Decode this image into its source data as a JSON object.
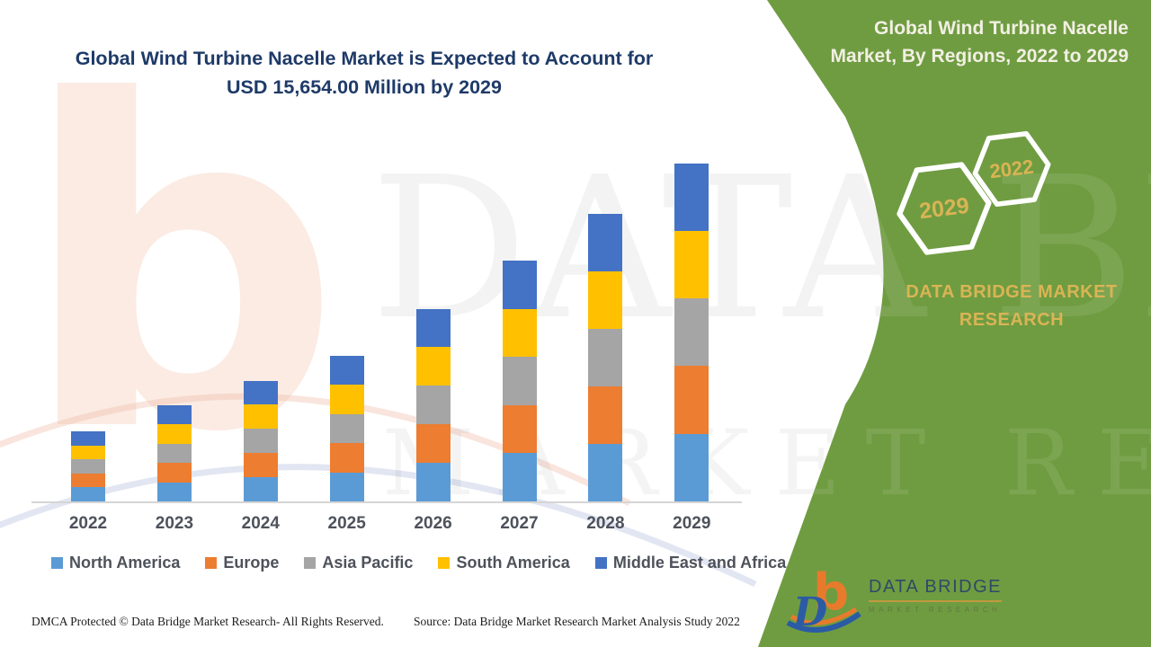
{
  "header": {
    "title_line1": "Global Wind Turbine Nacelle Market is Expected to Account for",
    "title_line2": "USD 15,654.00 Million by 2029"
  },
  "side_panel": {
    "heading": "Global Wind Turbine Nacelle Market, By Regions, 2022 to 2029",
    "hex_years": {
      "small": "2022",
      "large": "2029"
    },
    "brand_caption": "DATA BRIDGE MARKET RESEARCH",
    "colors": {
      "panel_green": "#6F9C41",
      "gold_text": "#D9B455",
      "heading_text": "#F2EFE3"
    }
  },
  "watermark": {
    "line1": "DATA BRIDGE",
    "line2": "MARKET RESEARCH"
  },
  "logo": {
    "name": "DATA BRIDGE",
    "subtitle": "MARKET RESEARCH"
  },
  "footer": {
    "left": "DMCA Protected © Data Bridge Market Research- All Rights Reserved.",
    "right": "Source: Data Bridge Market Research Market Analysis Study 2022"
  },
  "chart_data": {
    "type": "bar",
    "stacked": true,
    "unit": "USD Million",
    "categories": [
      "2022",
      "2023",
      "2024",
      "2025",
      "2026",
      "2027",
      "2028",
      "2029"
    ],
    "series": [
      {
        "name": "North America",
        "color": "#5B9BD5",
        "values": [
          650,
          890,
          1120,
          1350,
          1790,
          2230,
          2670,
          3140
        ]
      },
      {
        "name": "Europe",
        "color": "#ED7D31",
        "values": [
          650,
          890,
          1120,
          1350,
          1790,
          2230,
          2670,
          3140
        ]
      },
      {
        "name": "Asia Pacific",
        "color": "#A5A5A5",
        "values": [
          650,
          890,
          1120,
          1350,
          1790,
          2230,
          2670,
          3130
        ]
      },
      {
        "name": "South America",
        "color": "#FFC000",
        "values": [
          650,
          890,
          1120,
          1350,
          1780,
          2220,
          2670,
          3130
        ]
      },
      {
        "name": "Middle East and Africa",
        "color": "#4472C4",
        "values": [
          650,
          890,
          1110,
          1350,
          1780,
          2230,
          2670,
          3114
        ]
      }
    ],
    "totals_usd_million": [
      3250,
      4450,
      5590,
      6750,
      8930,
      11140,
      13350,
      15654
    ],
    "headline_value_2029": "USD 15,654.00 Million",
    "xlabel": "",
    "ylabel": "",
    "ylim": [
      0,
      16240
    ],
    "grid": false,
    "y_axis_shown": false,
    "legend_position": "bottom",
    "values_note": "Segment values estimated from bar heights; only the 2029 total is stated on the image."
  }
}
